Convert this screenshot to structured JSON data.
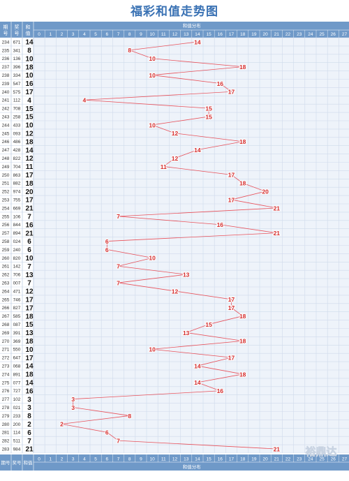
{
  "chart_data": {
    "type": "line",
    "title": "福彩和值走势图",
    "header": {
      "issue_label": "期号",
      "draw_label": "奖号",
      "sum_label": "和值",
      "distribution_label": "和值分布"
    },
    "footer": {
      "issue_label": "期号",
      "draw_label": "奖号",
      "sum_label": "和值",
      "distribution_label": "和值分布"
    },
    "x_categories": [
      "0",
      "1",
      "2",
      "3",
      "4",
      "5",
      "6",
      "7",
      "8",
      "9",
      "10",
      "11",
      "12",
      "13",
      "14",
      "15",
      "16",
      "17",
      "18",
      "19",
      "20",
      "21",
      "22",
      "23",
      "24",
      "25",
      "26",
      "27"
    ],
    "rows": [
      {
        "issue": "234",
        "draw": "671",
        "sum": 14
      },
      {
        "issue": "235",
        "draw": "341",
        "sum": 8
      },
      {
        "issue": "236",
        "draw": "136",
        "sum": 10
      },
      {
        "issue": "237",
        "draw": "396",
        "sum": 18
      },
      {
        "issue": "238",
        "draw": "334",
        "sum": 10
      },
      {
        "issue": "239",
        "draw": "547",
        "sum": 16
      },
      {
        "issue": "240",
        "draw": "575",
        "sum": 17
      },
      {
        "issue": "241",
        "draw": "112",
        "sum": 4
      },
      {
        "issue": "242",
        "draw": "708",
        "sum": 15
      },
      {
        "issue": "243",
        "draw": "258",
        "sum": 15
      },
      {
        "issue": "244",
        "draw": "433",
        "sum": 10
      },
      {
        "issue": "245",
        "draw": "093",
        "sum": 12
      },
      {
        "issue": "246",
        "draw": "486",
        "sum": 18
      },
      {
        "issue": "247",
        "draw": "428",
        "sum": 14
      },
      {
        "issue": "248",
        "draw": "822",
        "sum": 12
      },
      {
        "issue": "249",
        "draw": "704",
        "sum": 11
      },
      {
        "issue": "250",
        "draw": "863",
        "sum": 17
      },
      {
        "issue": "251",
        "draw": "882",
        "sum": 18
      },
      {
        "issue": "252",
        "draw": "974",
        "sum": 20
      },
      {
        "issue": "253",
        "draw": "755",
        "sum": 17
      },
      {
        "issue": "254",
        "draw": "669",
        "sum": 21
      },
      {
        "issue": "255",
        "draw": "106",
        "sum": 7
      },
      {
        "issue": "256",
        "draw": "844",
        "sum": 16
      },
      {
        "issue": "257",
        "draw": "894",
        "sum": 21
      },
      {
        "issue": "258",
        "draw": "024",
        "sum": 6
      },
      {
        "issue": "259",
        "draw": "240",
        "sum": 6
      },
      {
        "issue": "260",
        "draw": "820",
        "sum": 10
      },
      {
        "issue": "261",
        "draw": "142",
        "sum": 7
      },
      {
        "issue": "262",
        "draw": "706",
        "sum": 13
      },
      {
        "issue": "263",
        "draw": "007",
        "sum": 7
      },
      {
        "issue": "264",
        "draw": "471",
        "sum": 12
      },
      {
        "issue": "265",
        "draw": "746",
        "sum": 17
      },
      {
        "issue": "266",
        "draw": "827",
        "sum": 17
      },
      {
        "issue": "267",
        "draw": "585",
        "sum": 18
      },
      {
        "issue": "268",
        "draw": "087",
        "sum": 15
      },
      {
        "issue": "269",
        "draw": "391",
        "sum": 13
      },
      {
        "issue": "270",
        "draw": "369",
        "sum": 18
      },
      {
        "issue": "271",
        "draw": "550",
        "sum": 10
      },
      {
        "issue": "272",
        "draw": "647",
        "sum": 17
      },
      {
        "issue": "273",
        "draw": "068",
        "sum": 14
      },
      {
        "issue": "274",
        "draw": "891",
        "sum": 18
      },
      {
        "issue": "275",
        "draw": "077",
        "sum": 14
      },
      {
        "issue": "276",
        "draw": "727",
        "sum": 16
      },
      {
        "issue": "277",
        "draw": "102",
        "sum": 3
      },
      {
        "issue": "278",
        "draw": "021",
        "sum": 3
      },
      {
        "issue": "279",
        "draw": "233",
        "sum": 8
      },
      {
        "issue": "280",
        "draw": "200",
        "sum": 2
      },
      {
        "issue": "281",
        "draw": "114",
        "sum": 6
      },
      {
        "issue": "282",
        "draw": "511",
        "sum": 7
      },
      {
        "issue": "283",
        "draw": "984",
        "sum": 21
      }
    ],
    "colors": {
      "title": "#3a72b4",
      "header_bg": "#6f99c8",
      "header_text": "#ffffff",
      "grid": "#cfdaeb",
      "cell_bg": "#eef3fa",
      "line": "#e8525b",
      "point_text": "#d42a2a"
    },
    "grid": true
  },
  "watermark": "裕鼎达"
}
